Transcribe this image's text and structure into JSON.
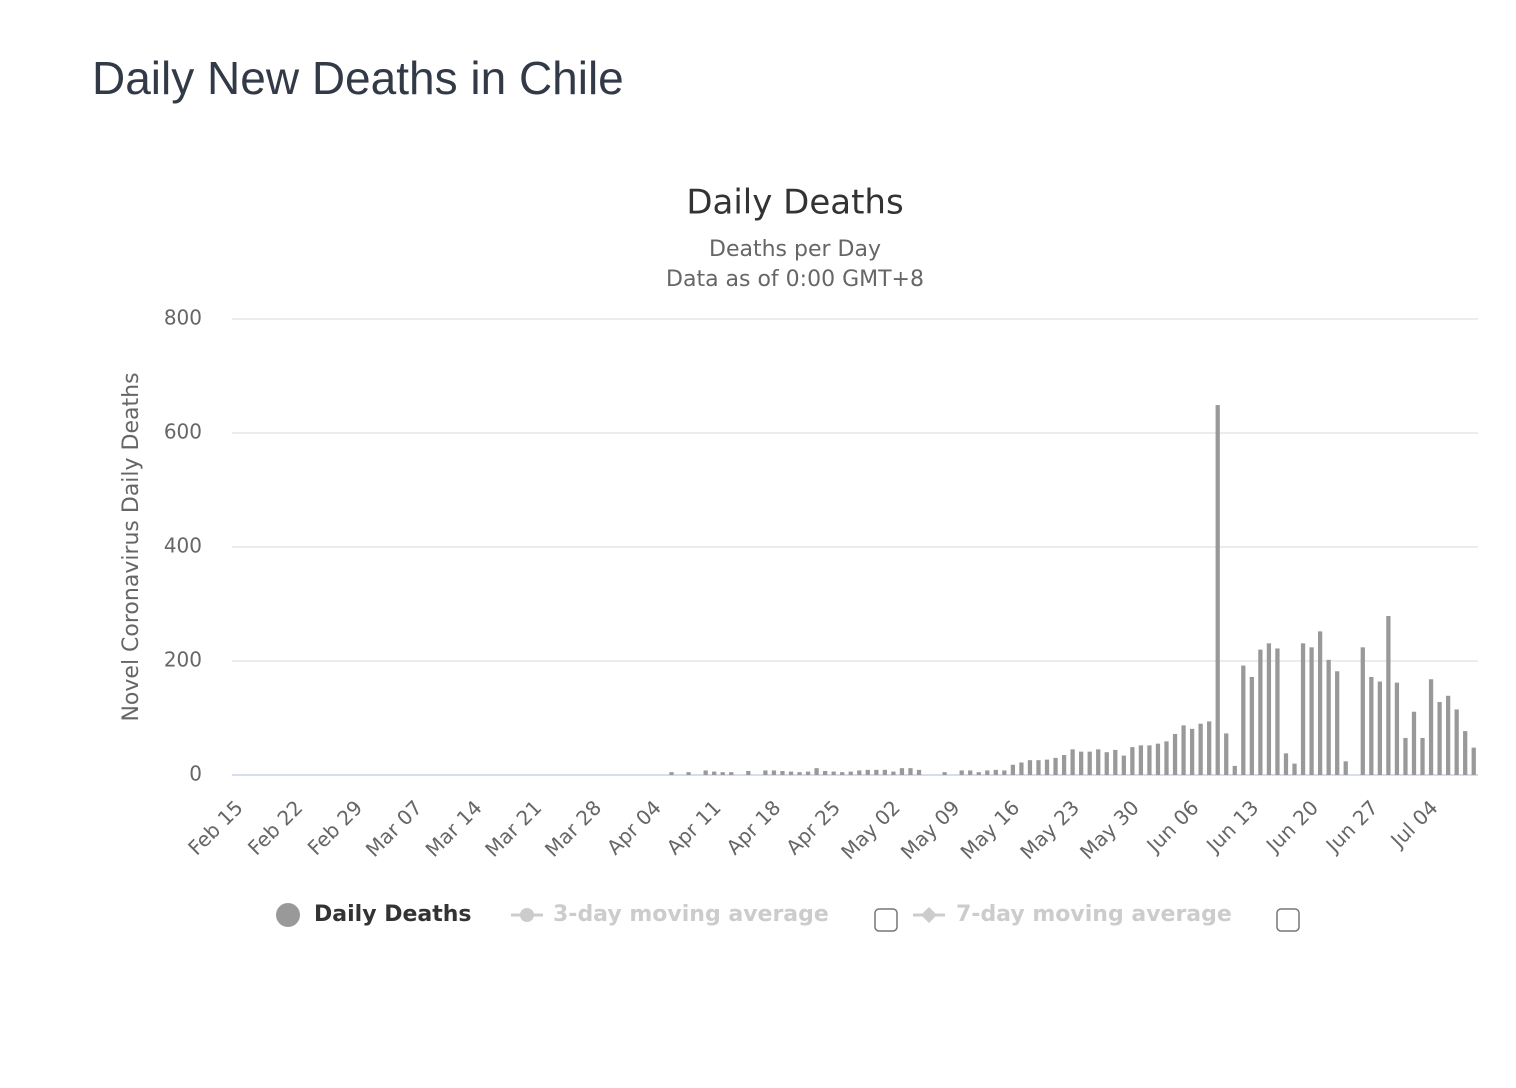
{
  "page_title": "Daily New Deaths in Chile",
  "chart_data": {
    "type": "bar",
    "title": "Daily Deaths",
    "subtitle": [
      "Deaths per Day",
      "Data as of 0:00 GMT+8"
    ],
    "y_axis_label": "Novel Coronavirus Daily Deaths",
    "ylim": [
      0,
      800
    ],
    "yticks": [
      0,
      200,
      400,
      600,
      800
    ],
    "grid": true,
    "categories": [
      "Feb 15",
      null,
      null,
      null,
      null,
      null,
      null,
      "Feb 22",
      null,
      null,
      null,
      null,
      null,
      null,
      "Feb 29",
      null,
      null,
      null,
      null,
      null,
      null,
      "Mar 07",
      null,
      null,
      null,
      null,
      null,
      null,
      "Mar 14",
      null,
      null,
      null,
      null,
      null,
      null,
      "Mar 21",
      null,
      null,
      null,
      null,
      null,
      null,
      "Mar 28",
      null,
      null,
      null,
      null,
      null,
      null,
      "Apr 04",
      null,
      null,
      null,
      null,
      null,
      null,
      "Apr 11",
      null,
      null,
      null,
      null,
      null,
      null,
      "Apr 18",
      null,
      null,
      null,
      null,
      null,
      null,
      "Apr 25",
      null,
      null,
      null,
      null,
      null,
      null,
      "May 02",
      null,
      null,
      null,
      null,
      null,
      null,
      "May 09",
      null,
      null,
      null,
      null,
      null,
      null,
      "May 16",
      null,
      null,
      null,
      null,
      null,
      null,
      "May 23",
      null,
      null,
      null,
      null,
      null,
      null,
      "May 30",
      null,
      null,
      null,
      null,
      null,
      null,
      "Jun 06",
      null,
      null,
      null,
      null,
      null,
      null,
      "Jun 13",
      null,
      null,
      null,
      null,
      null,
      null,
      "Jun 20",
      null,
      null,
      null,
      null,
      null,
      null,
      "Jun 27",
      null,
      null,
      null,
      null,
      null,
      null,
      "Jul 04",
      null,
      null,
      null,
      null,
      null
    ],
    "series": [
      {
        "name": "Daily Deaths",
        "color": "#999999",
        "values": [
          0,
          0,
          0,
          0,
          0,
          0,
          0,
          0,
          0,
          0,
          0,
          0,
          0,
          0,
          0,
          0,
          0,
          0,
          0,
          0,
          0,
          0,
          0,
          0,
          0,
          0,
          0,
          0,
          0,
          0,
          0,
          0,
          0,
          0,
          0,
          0,
          0,
          0,
          0,
          0,
          0,
          0,
          0,
          0,
          0,
          0,
          0,
          0,
          0,
          0,
          0,
          5,
          0,
          5,
          0,
          8,
          6,
          5,
          5,
          0,
          7,
          0,
          8,
          8,
          7,
          6,
          5,
          6,
          12,
          7,
          6,
          5,
          6,
          8,
          9,
          9,
          9,
          6,
          12,
          12,
          9,
          0,
          0,
          5,
          0,
          8,
          8,
          5,
          8,
          9,
          8,
          18,
          22,
          26,
          26,
          27,
          30,
          35,
          45,
          41,
          41,
          45,
          40,
          44,
          34,
          49,
          52,
          52,
          55,
          59,
          72,
          87,
          81,
          90,
          94,
          649,
          73,
          16,
          192,
          172,
          220,
          231,
          222,
          38,
          20,
          231,
          224,
          252,
          202,
          182,
          24,
          0,
          224,
          172,
          164,
          279,
          162,
          65,
          111,
          65,
          168,
          128,
          139,
          115,
          77,
          48
        ]
      }
    ],
    "inactive_legend": [
      "3-day moving average",
      "7-day moving average"
    ]
  }
}
